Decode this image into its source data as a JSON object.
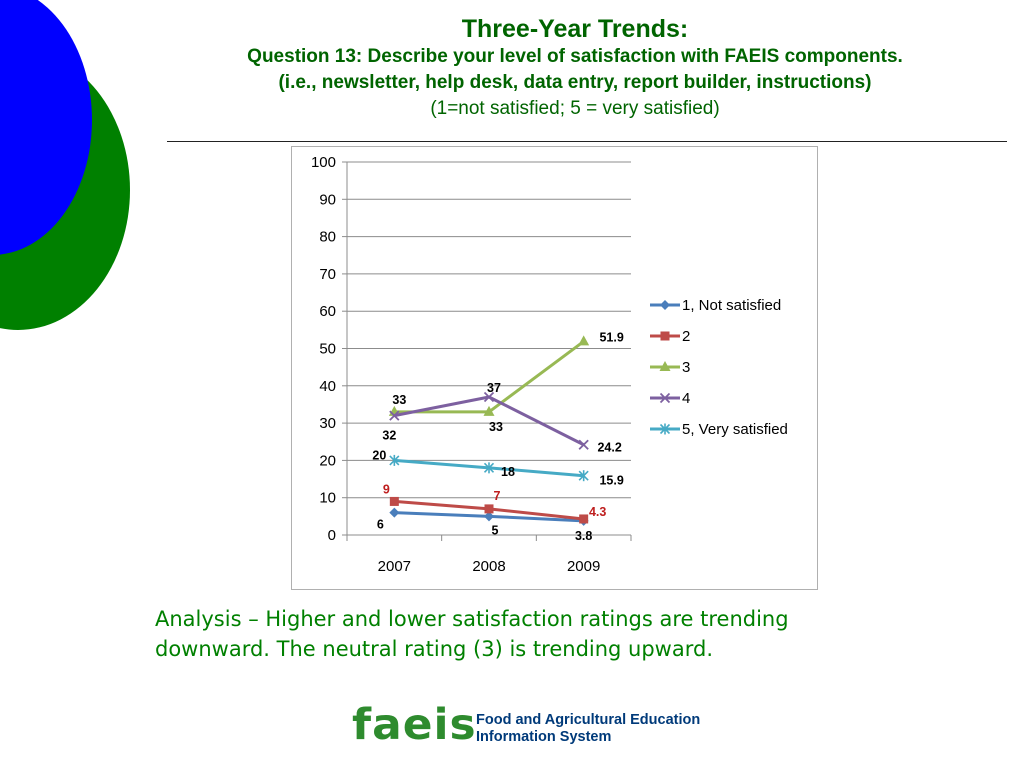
{
  "slide": {
    "title": "Three-Year Trends:",
    "subtitle_line1": "Question 13: Describe your level of satisfaction with FAEIS components.",
    "subtitle_line2": "(i.e., newsletter, help desk,  data entry, report builder, instructions)",
    "scale_note": "(1=not satisfied;  5 = very satisfied)",
    "analysis_line1": "Analysis – Higher and lower satisfaction ratings are trending",
    "analysis_line2": "downward. The neutral rating (3) is trending upward.",
    "logo_word": "faeis",
    "logo_line1": "Food and Agricultural Education",
    "logo_line2": "Information System",
    "colors": {
      "heading": "#006400",
      "analysis": "#008000",
      "deco_blue": "#0000ff",
      "deco_green": "#008000"
    }
  },
  "chart_data": {
    "type": "line",
    "categories": [
      "2007",
      "2008",
      "2009"
    ],
    "ylim": [
      0,
      100
    ],
    "yticks": [
      "0",
      "10",
      "20",
      "30",
      "40",
      "50",
      "60",
      "70",
      "80",
      "90",
      "100"
    ],
    "grid": true,
    "legend_position": "right",
    "series": [
      {
        "name": "1, Not satisfied",
        "values": [
          6,
          5,
          3.8
        ],
        "labels": [
          "6",
          "5",
          "3.8"
        ],
        "color": "#4a7ebb",
        "marker": "diamond"
      },
      {
        "name": "2",
        "values": [
          9,
          7,
          4.3
        ],
        "labels": [
          "9",
          "7",
          "4.3"
        ],
        "color": "#be4b48",
        "marker": "square"
      },
      {
        "name": "3",
        "values": [
          33,
          33,
          51.9
        ],
        "labels": [
          "33",
          "33",
          "51.9"
        ],
        "color": "#98b954",
        "marker": "triangle"
      },
      {
        "name": "4",
        "values": [
          32,
          37,
          24.2
        ],
        "labels": [
          "32",
          "37",
          "24.2"
        ],
        "color": "#7d60a0",
        "marker": "x"
      },
      {
        "name": "5, Very satisfied",
        "values": [
          20,
          18,
          15.9
        ],
        "labels": [
          "20",
          "18",
          "15.9"
        ],
        "color": "#46aac5",
        "marker": "star"
      }
    ]
  }
}
